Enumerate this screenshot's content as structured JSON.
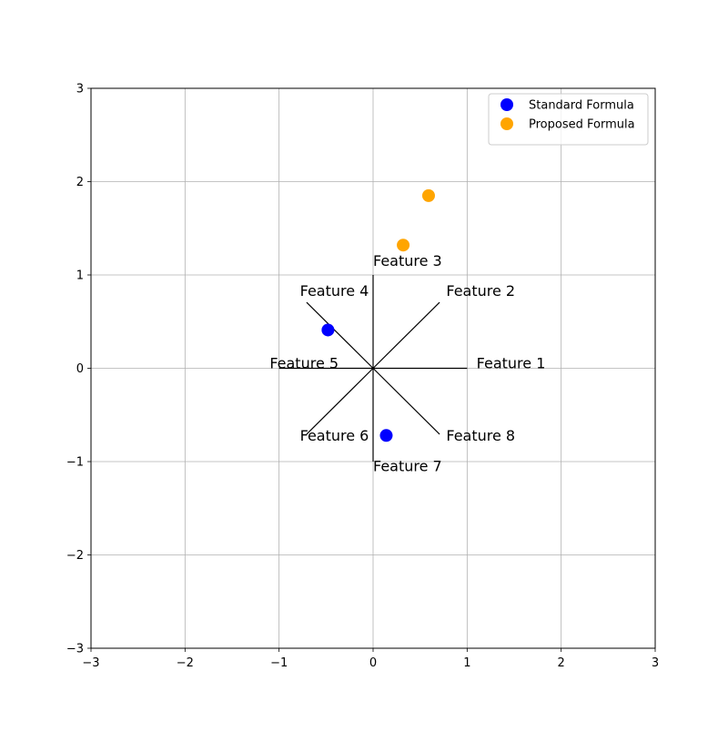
{
  "chart_data": {
    "type": "scatter",
    "title": "",
    "xlabel": "",
    "ylabel": "",
    "xlim": [
      -3,
      3
    ],
    "ylim": [
      -3,
      3
    ],
    "xticks": [
      -3,
      -2,
      -1,
      0,
      1,
      2,
      3
    ],
    "yticks": [
      -3,
      -2,
      -1,
      0,
      1,
      2,
      3
    ],
    "x_tick_labels": [
      "−3",
      "−2",
      "−1",
      "0",
      "1",
      "2",
      "3"
    ],
    "y_tick_labels": [
      "−3",
      "−2",
      "−1",
      "0",
      "1",
      "2",
      "3"
    ],
    "grid": true,
    "legend_position": "top-right",
    "series": [
      {
        "name": "Standard Formula",
        "color": "#0000ff",
        "points": [
          {
            "x": -0.48,
            "y": 0.41
          },
          {
            "x": 0.14,
            "y": -0.72
          }
        ]
      },
      {
        "name": "Proposed Formula",
        "color": "#ffa500",
        "points": [
          {
            "x": 0.59,
            "y": 1.85
          },
          {
            "x": 0.32,
            "y": 1.32
          }
        ]
      }
    ],
    "feature_axes": [
      {
        "label": "Feature 1",
        "angle_deg": 0
      },
      {
        "label": "Feature 2",
        "angle_deg": 45
      },
      {
        "label": "Feature 3",
        "angle_deg": 90
      },
      {
        "label": "Feature 4",
        "angle_deg": 135
      },
      {
        "label": "Feature 5",
        "angle_deg": 180
      },
      {
        "label": "Feature 6",
        "angle_deg": 225
      },
      {
        "label": "Feature 7",
        "angle_deg": 270
      },
      {
        "label": "Feature 8",
        "angle_deg": 315
      }
    ]
  }
}
